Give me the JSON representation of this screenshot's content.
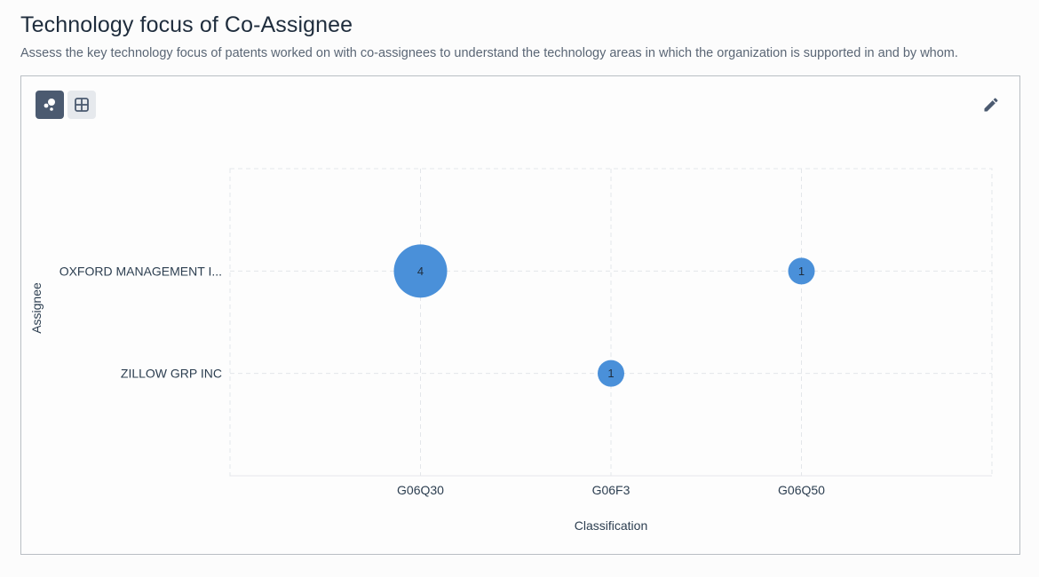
{
  "header": {
    "title": "Technology focus of Co-Assignee",
    "subtitle": "Assess the key technology focus of patents worked on with co-assignees to understand the technology areas in which the organization is supported in and by whom."
  },
  "toolbar": {
    "bubble_view_icon": "bubble-chart-icon",
    "table_view_icon": "grid-table-icon",
    "edit_icon": "pencil-icon",
    "active_view": "bubble"
  },
  "colors": {
    "bubble": "#4a90d9",
    "grid": "#e3e6ea",
    "active_toggle": "#4b5a70"
  },
  "chart_data": {
    "type": "scatter",
    "subtype": "bubble",
    "xlabel": "Classification",
    "ylabel": "Assignee",
    "x_categories": [
      "G06Q30",
      "G06F3",
      "G06Q50"
    ],
    "y_categories": [
      "OXFORD MANAGEMENT I...",
      "ZILLOW GRP INC"
    ],
    "points": [
      {
        "x": "G06Q30",
        "y": "OXFORD MANAGEMENT I...",
        "value": 4
      },
      {
        "x": "G06Q50",
        "y": "OXFORD MANAGEMENT I...",
        "value": 1
      },
      {
        "x": "G06F3",
        "y": "ZILLOW GRP INC",
        "value": 1
      }
    ],
    "grid": true,
    "legend": "none"
  }
}
